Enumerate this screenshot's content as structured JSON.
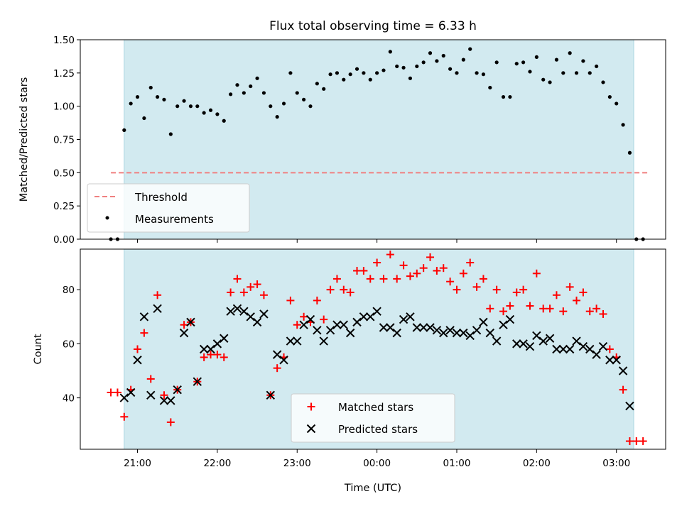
{
  "chart_data": [
    {
      "type": "scatter",
      "title": "Flux total observing time = 6.33 h",
      "ylabel": "Matched/Predicted stars",
      "xlabel": "",
      "ylim": [
        0,
        1.5
      ],
      "yticks": [
        "0.00",
        "0.25",
        "0.50",
        "0.75",
        "1.00",
        "1.25",
        "1.50"
      ],
      "legend_position": "lower-left",
      "shaded_interval": [
        "20:50",
        "03:13"
      ],
      "shade_color": "#d2eaf0",
      "threshold": {
        "name": "Threshold",
        "value": 0.5,
        "from": "20:40",
        "to": "03:24",
        "color": "#f08080"
      },
      "series": [
        {
          "name": "Measurements",
          "color": "#000000",
          "points": [
            [
              "20:40",
              0.0
            ],
            [
              "20:45",
              0.0
            ],
            [
              "20:50",
              0.82
            ],
            [
              "20:55",
              1.02
            ],
            [
              "21:00",
              1.07
            ],
            [
              "21:05",
              0.91
            ],
            [
              "21:10",
              1.14
            ],
            [
              "21:15",
              1.07
            ],
            [
              "21:20",
              1.05
            ],
            [
              "21:25",
              0.79
            ],
            [
              "21:30",
              1.0
            ],
            [
              "21:35",
              1.04
            ],
            [
              "21:40",
              1.0
            ],
            [
              "21:45",
              1.0
            ],
            [
              "21:50",
              0.95
            ],
            [
              "21:55",
              0.97
            ],
            [
              "22:00",
              0.94
            ],
            [
              "22:05",
              0.89
            ],
            [
              "22:10",
              1.09
            ],
            [
              "22:15",
              1.16
            ],
            [
              "22:20",
              1.1
            ],
            [
              "22:25",
              1.15
            ],
            [
              "22:30",
              1.21
            ],
            [
              "22:35",
              1.1
            ],
            [
              "22:40",
              1.0
            ],
            [
              "22:45",
              0.92
            ],
            [
              "22:50",
              1.02
            ],
            [
              "22:55",
              1.25
            ],
            [
              "23:00",
              1.1
            ],
            [
              "23:05",
              1.05
            ],
            [
              "23:10",
              1.0
            ],
            [
              "23:15",
              1.17
            ],
            [
              "23:20",
              1.13
            ],
            [
              "23:25",
              1.24
            ],
            [
              "23:30",
              1.25
            ],
            [
              "23:35",
              1.2
            ],
            [
              "23:40",
              1.24
            ],
            [
              "23:45",
              1.28
            ],
            [
              "23:50",
              1.25
            ],
            [
              "23:55",
              1.2
            ],
            [
              "00:00",
              1.25
            ],
            [
              "00:05",
              1.27
            ],
            [
              "00:10",
              1.41
            ],
            [
              "00:15",
              1.3
            ],
            [
              "00:20",
              1.29
            ],
            [
              "00:25",
              1.21
            ],
            [
              "00:30",
              1.3
            ],
            [
              "00:35",
              1.33
            ],
            [
              "00:40",
              1.4
            ],
            [
              "00:45",
              1.34
            ],
            [
              "00:50",
              1.38
            ],
            [
              "00:55",
              1.28
            ],
            [
              "01:00",
              1.25
            ],
            [
              "01:05",
              1.35
            ],
            [
              "01:10",
              1.43
            ],
            [
              "01:15",
              1.25
            ],
            [
              "01:20",
              1.24
            ],
            [
              "01:25",
              1.14
            ],
            [
              "01:30",
              1.33
            ],
            [
              "01:35",
              1.07
            ],
            [
              "01:40",
              1.07
            ],
            [
              "01:45",
              1.32
            ],
            [
              "01:50",
              1.33
            ],
            [
              "01:55",
              1.26
            ],
            [
              "02:00",
              1.37
            ],
            [
              "02:05",
              1.2
            ],
            [
              "02:10",
              1.18
            ],
            [
              "02:15",
              1.35
            ],
            [
              "02:20",
              1.25
            ],
            [
              "02:25",
              1.4
            ],
            [
              "02:30",
              1.25
            ],
            [
              "02:35",
              1.34
            ],
            [
              "02:40",
              1.25
            ],
            [
              "02:45",
              1.3
            ],
            [
              "02:50",
              1.18
            ],
            [
              "02:55",
              1.07
            ],
            [
              "03:00",
              1.02
            ],
            [
              "03:05",
              0.86
            ],
            [
              "03:10",
              0.65
            ],
            [
              "03:15",
              0.0
            ],
            [
              "03:20",
              0.0
            ]
          ]
        }
      ]
    },
    {
      "type": "scatter",
      "title": "",
      "ylabel": "Count",
      "xlabel": "Time (UTC)",
      "ylim": [
        21,
        95
      ],
      "yticks": [
        "40",
        "60",
        "80"
      ],
      "xticks": [
        "21:00",
        "22:00",
        "23:00",
        "00:00",
        "01:00",
        "02:00",
        "03:00"
      ],
      "legend_position": "lower-center",
      "shaded_interval": [
        "20:50",
        "03:13"
      ],
      "series": [
        {
          "name": "Matched stars",
          "marker": "plus",
          "color": "#ff0000",
          "points": [
            [
              "20:40",
              42
            ],
            [
              "20:45",
              42
            ],
            [
              "20:50",
              33
            ],
            [
              "20:55",
              43
            ],
            [
              "21:00",
              58
            ],
            [
              "21:05",
              64
            ],
            [
              "21:10",
              47
            ],
            [
              "21:15",
              78
            ],
            [
              "21:20",
              41
            ],
            [
              "21:25",
              31
            ],
            [
              "21:30",
              43
            ],
            [
              "21:35",
              67
            ],
            [
              "21:40",
              68
            ],
            [
              "21:45",
              46
            ],
            [
              "21:50",
              55
            ],
            [
              "21:55",
              56
            ],
            [
              "22:00",
              56
            ],
            [
              "22:05",
              55
            ],
            [
              "22:10",
              79
            ],
            [
              "22:15",
              84
            ],
            [
              "22:20",
              79
            ],
            [
              "22:25",
              81
            ],
            [
              "22:30",
              82
            ],
            [
              "22:35",
              78
            ],
            [
              "22:40",
              41
            ],
            [
              "22:45",
              51
            ],
            [
              "22:50",
              55
            ],
            [
              "22:55",
              76
            ],
            [
              "23:00",
              67
            ],
            [
              "23:05",
              70
            ],
            [
              "23:10",
              68
            ],
            [
              "23:15",
              76
            ],
            [
              "23:20",
              69
            ],
            [
              "23:25",
              80
            ],
            [
              "23:30",
              84
            ],
            [
              "23:35",
              80
            ],
            [
              "23:40",
              79
            ],
            [
              "23:45",
              87
            ],
            [
              "23:50",
              87
            ],
            [
              "23:55",
              84
            ],
            [
              "00:00",
              90
            ],
            [
              "00:05",
              84
            ],
            [
              "00:10",
              93
            ],
            [
              "00:15",
              84
            ],
            [
              "00:20",
              89
            ],
            [
              "00:25",
              85
            ],
            [
              "00:30",
              86
            ],
            [
              "00:35",
              88
            ],
            [
              "00:40",
              92
            ],
            [
              "00:45",
              87
            ],
            [
              "00:50",
              88
            ],
            [
              "00:55",
              83
            ],
            [
              "01:00",
              80
            ],
            [
              "01:05",
              86
            ],
            [
              "01:10",
              90
            ],
            [
              "01:15",
              81
            ],
            [
              "01:20",
              84
            ],
            [
              "01:25",
              73
            ],
            [
              "01:30",
              80
            ],
            [
              "01:35",
              72
            ],
            [
              "01:40",
              74
            ],
            [
              "01:45",
              79
            ],
            [
              "01:50",
              80
            ],
            [
              "01:55",
              74
            ],
            [
              "02:00",
              86
            ],
            [
              "02:05",
              73
            ],
            [
              "02:10",
              73
            ],
            [
              "02:15",
              78
            ],
            [
              "02:20",
              72
            ],
            [
              "02:25",
              81
            ],
            [
              "02:30",
              76
            ],
            [
              "02:35",
              79
            ],
            [
              "02:40",
              72
            ],
            [
              "02:45",
              73
            ],
            [
              "02:50",
              71
            ],
            [
              "02:55",
              58
            ],
            [
              "03:00",
              55
            ],
            [
              "03:05",
              43
            ],
            [
              "03:10",
              24
            ],
            [
              "03:15",
              24
            ],
            [
              "03:20",
              24
            ]
          ]
        },
        {
          "name": "Predicted stars",
          "marker": "x",
          "color": "#000000",
          "points": [
            [
              "20:50",
              40
            ],
            [
              "20:55",
              42
            ],
            [
              "21:00",
              54
            ],
            [
              "21:05",
              70
            ],
            [
              "21:10",
              41
            ],
            [
              "21:15",
              73
            ],
            [
              "21:20",
              39
            ],
            [
              "21:25",
              39
            ],
            [
              "21:30",
              43
            ],
            [
              "21:35",
              64
            ],
            [
              "21:40",
              68
            ],
            [
              "21:45",
              46
            ],
            [
              "21:50",
              58
            ],
            [
              "21:55",
              58
            ],
            [
              "22:00",
              60
            ],
            [
              "22:05",
              62
            ],
            [
              "22:10",
              72
            ],
            [
              "22:15",
              73
            ],
            [
              "22:20",
              72
            ],
            [
              "22:25",
              70
            ],
            [
              "22:30",
              68
            ],
            [
              "22:35",
              71
            ],
            [
              "22:40",
              41
            ],
            [
              "22:45",
              56
            ],
            [
              "22:50",
              54
            ],
            [
              "22:55",
              61
            ],
            [
              "23:00",
              61
            ],
            [
              "23:05",
              67
            ],
            [
              "23:10",
              69
            ],
            [
              "23:15",
              65
            ],
            [
              "23:20",
              61
            ],
            [
              "23:25",
              65
            ],
            [
              "23:30",
              67
            ],
            [
              "23:35",
              67
            ],
            [
              "23:40",
              64
            ],
            [
              "23:45",
              68
            ],
            [
              "23:50",
              70
            ],
            [
              "23:55",
              70
            ],
            [
              "00:00",
              72
            ],
            [
              "00:05",
              66
            ],
            [
              "00:10",
              66
            ],
            [
              "00:15",
              64
            ],
            [
              "00:20",
              69
            ],
            [
              "00:25",
              70
            ],
            [
              "00:30",
              66
            ],
            [
              "00:35",
              66
            ],
            [
              "00:40",
              66
            ],
            [
              "00:45",
              65
            ],
            [
              "00:50",
              64
            ],
            [
              "00:55",
              65
            ],
            [
              "01:00",
              64
            ],
            [
              "01:05",
              64
            ],
            [
              "01:10",
              63
            ],
            [
              "01:15",
              65
            ],
            [
              "01:20",
              68
            ],
            [
              "01:25",
              64
            ],
            [
              "01:30",
              61
            ],
            [
              "01:35",
              67
            ],
            [
              "01:40",
              69
            ],
            [
              "01:45",
              60
            ],
            [
              "01:50",
              60
            ],
            [
              "01:55",
              59
            ],
            [
              "02:00",
              63
            ],
            [
              "02:05",
              61
            ],
            [
              "02:10",
              62
            ],
            [
              "02:15",
              58
            ],
            [
              "02:20",
              58
            ],
            [
              "02:25",
              58
            ],
            [
              "02:30",
              61
            ],
            [
              "02:35",
              59
            ],
            [
              "02:40",
              58
            ],
            [
              "02:45",
              56
            ],
            [
              "02:50",
              59
            ],
            [
              "02:55",
              54
            ],
            [
              "03:00",
              54
            ],
            [
              "03:05",
              50
            ],
            [
              "03:10",
              37
            ]
          ]
        }
      ]
    }
  ]
}
